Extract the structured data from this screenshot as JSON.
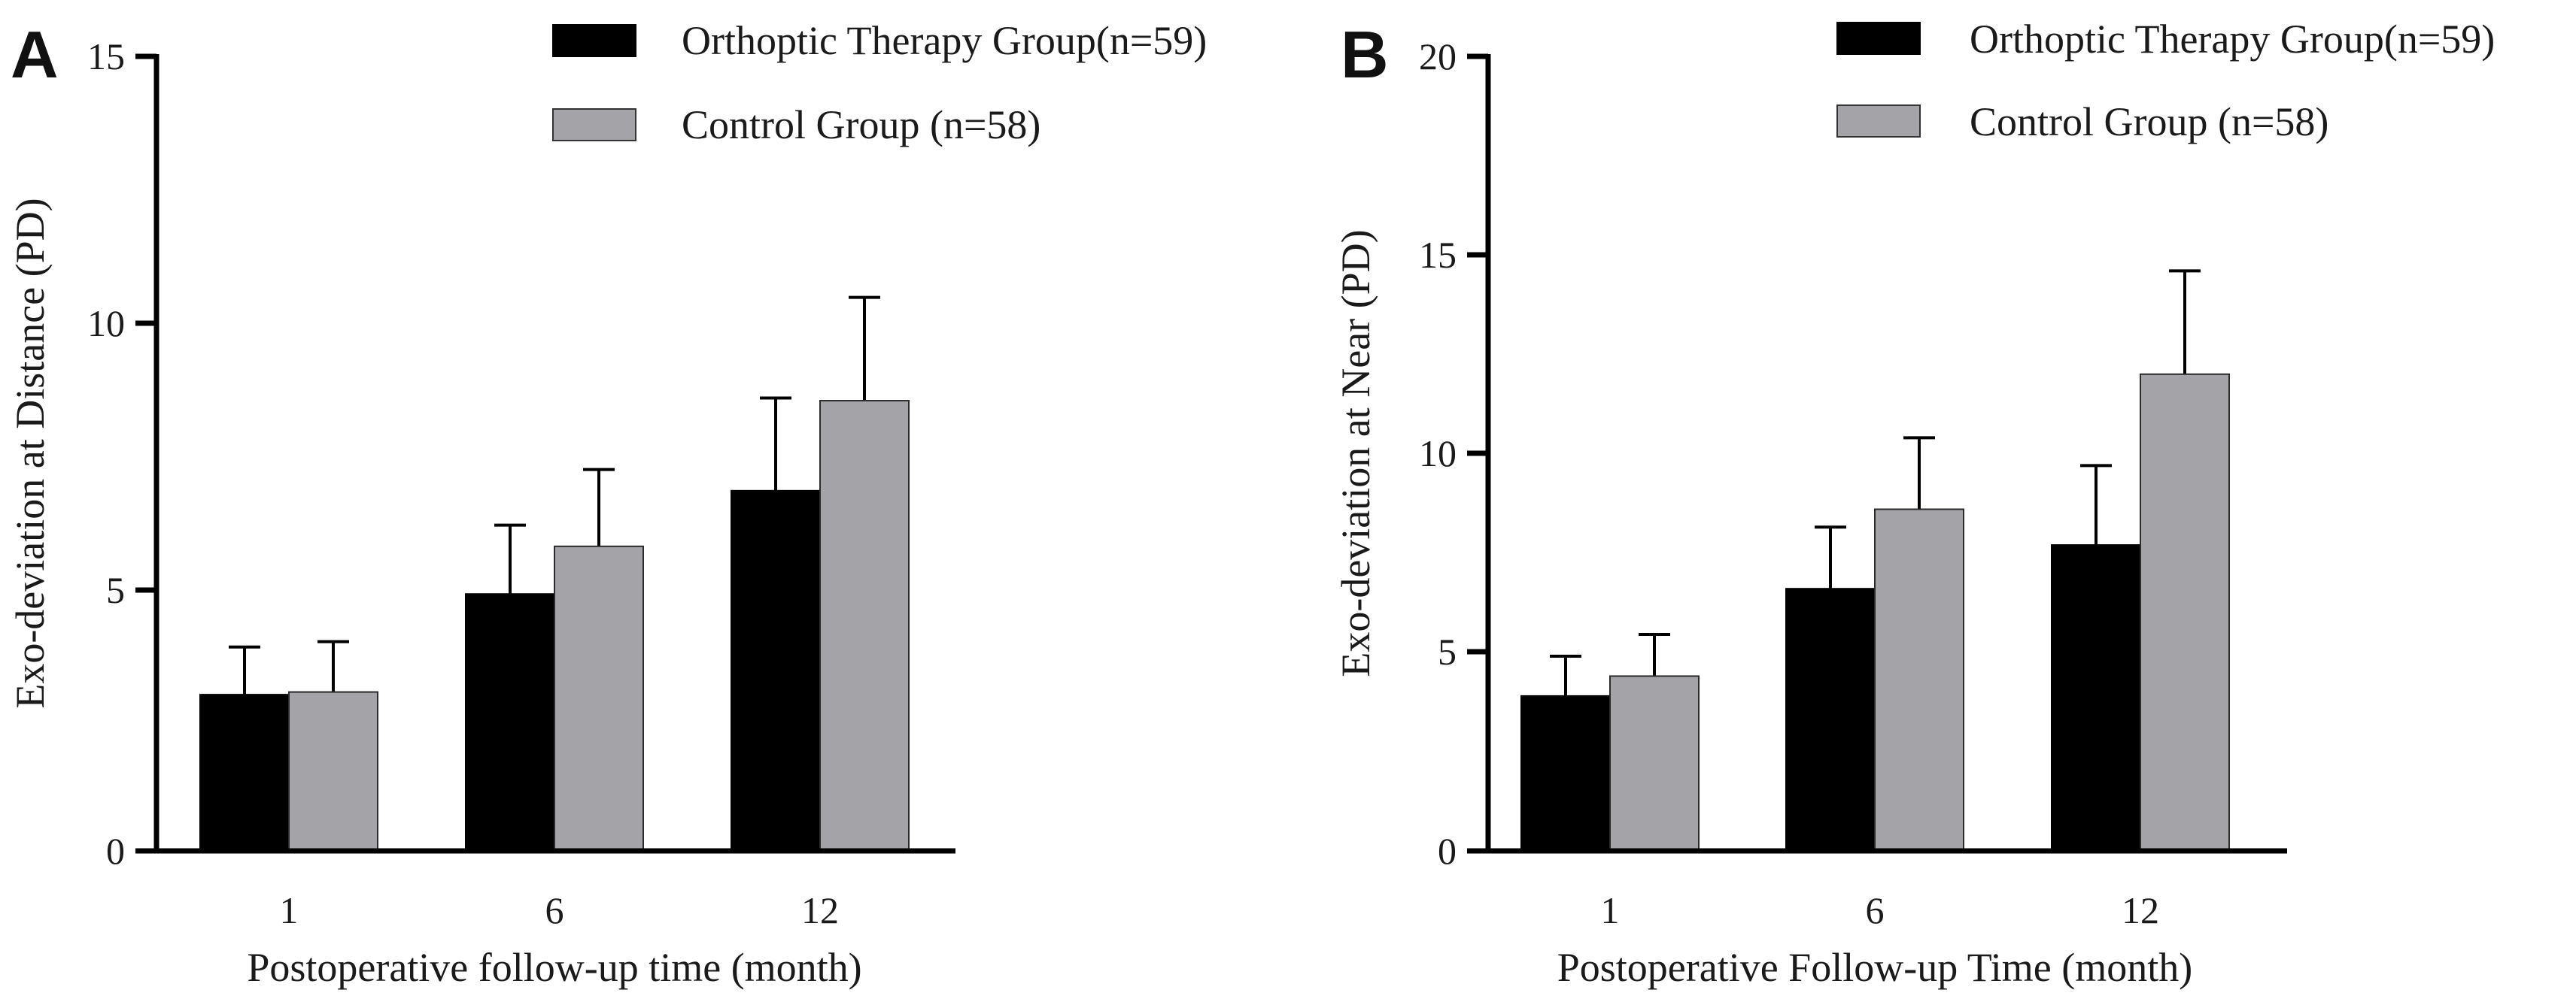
{
  "colors": {
    "series_0": "#000000",
    "series_1": "#a3a3a8",
    "axis": "#000000"
  },
  "chart_data": [
    {
      "panel": "A",
      "type": "bar",
      "title": "",
      "xlabel": "Postoperative follow-up time (month)",
      "ylabel": "Exo-deviation at Distance (PD)",
      "categories": [
        "1",
        "6",
        "12"
      ],
      "ylim": [
        0,
        15
      ],
      "yticks": [
        0,
        5,
        10,
        15
      ],
      "series": [
        {
          "name": "Orthoptic Therapy Group(n=59)",
          "values": [
            2.95,
            4.85,
            6.8
          ],
          "errors": [
            0.9,
            1.3,
            1.75
          ]
        },
        {
          "name": "Control Group (n=58)",
          "values": [
            3.0,
            5.75,
            8.5
          ],
          "errors": [
            0.95,
            1.45,
            1.95
          ]
        }
      ],
      "legend_position": "top-right"
    },
    {
      "panel": "B",
      "type": "bar",
      "title": "",
      "xlabel": "Postoperative Follow-up Time (month)",
      "ylabel": "Exo-deviation at Near (PD)",
      "categories": [
        "1",
        "6",
        "12"
      ],
      "ylim": [
        0,
        20
      ],
      "yticks": [
        0,
        5,
        10,
        15,
        20
      ],
      "series": [
        {
          "name": "Orthoptic Therapy Group(n=59)",
          "values": [
            3.9,
            6.6,
            7.7
          ],
          "errors": [
            1.0,
            1.55,
            2.0
          ]
        },
        {
          "name": "Control Group (n=58)",
          "values": [
            4.4,
            8.6,
            12.0
          ],
          "errors": [
            1.05,
            1.8,
            2.6
          ]
        }
      ],
      "legend_position": "top-right"
    }
  ]
}
